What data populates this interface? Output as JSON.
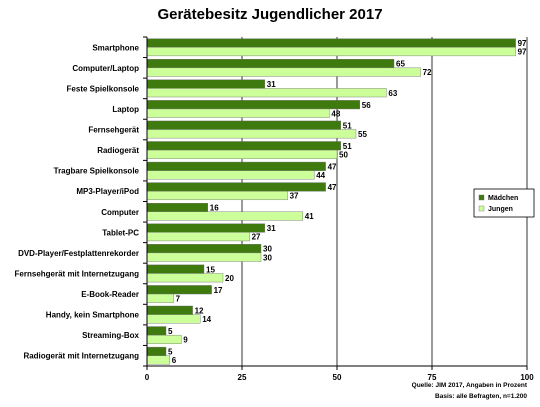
{
  "chart_data": {
    "type": "bar",
    "orientation": "horizontal",
    "title": "Gerätebesitz Jugendlicher 2017",
    "categories": [
      "Smartphone",
      "Computer/Laptop",
      "Feste Spielkonsole",
      "Laptop",
      "Fernsehgerät",
      "Radiogerät",
      "Tragbare Spielkonsole",
      "MP3-Player/iPod",
      "Computer",
      "Tablet-PC",
      "DVD-Player/Festplattenrekorder",
      "Fernsehgerät mit Internetzugang",
      "E-Book-Reader",
      "Handy, kein Smartphone",
      "Streaming-Box",
      "Radiogerät mit Internetzugang"
    ],
    "series": [
      {
        "name": "Mädchen",
        "color": "#3f7a0f",
        "values": [
          97,
          65,
          31,
          56,
          51,
          51,
          47,
          47,
          16,
          31,
          30,
          15,
          17,
          12,
          5,
          5
        ]
      },
      {
        "name": "Jungen",
        "color": "#ccff99",
        "values": [
          97,
          72,
          63,
          48,
          55,
          50,
          44,
          37,
          41,
          27,
          30,
          20,
          7,
          14,
          9,
          6
        ]
      }
    ],
    "xlim": [
      0,
      100
    ],
    "xticks": [
      "0",
      "25",
      "50",
      "75",
      "100"
    ],
    "grid": true,
    "legend_position": "right"
  },
  "source": {
    "line1": "Quelle: JIM 2017, Angaben in Prozent",
    "line2": "Basis: alle Befragten, n=1.200"
  }
}
